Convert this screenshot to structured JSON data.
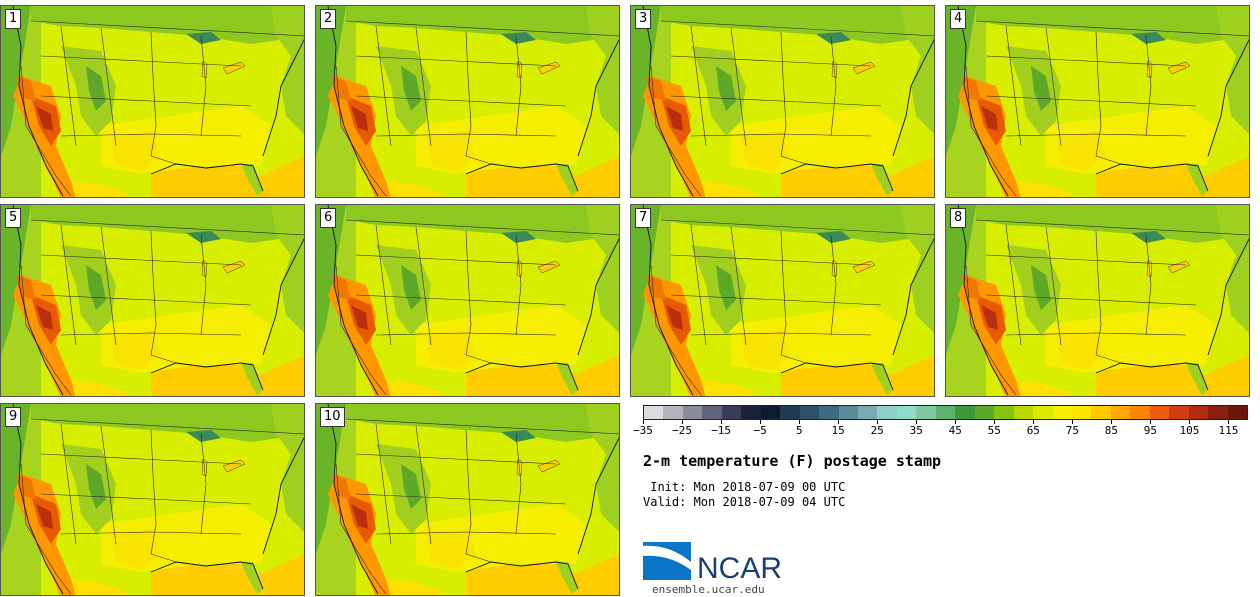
{
  "figure": {
    "title": "2-m temperature (F) postage stamp",
    "init": " Init: Mon 2018-07-09 00 UTC",
    "valid": "Valid: Mon 2018-07-09 04 UTC"
  },
  "members": [
    "1",
    "2",
    "3",
    "4",
    "5",
    "6",
    "7",
    "8",
    "9",
    "10"
  ],
  "colorbar": {
    "units": "F",
    "min": -35,
    "max": 120,
    "step": 5,
    "tick_labels": [
      "−35",
      "−25",
      "−15",
      "−5",
      "5",
      "15",
      "25",
      "35",
      "45",
      "55",
      "65",
      "75",
      "85",
      "95",
      "105",
      "115"
    ],
    "tick_values": [
      -35,
      -25,
      -15,
      -5,
      5,
      15,
      25,
      35,
      45,
      55,
      65,
      75,
      85,
      95,
      105,
      115
    ],
    "colors": [
      "#dcdcdc",
      "#b4b4bc",
      "#8a8c9c",
      "#606478",
      "#383c58",
      "#1a2038",
      "#0e1a30",
      "#203850",
      "#2e5068",
      "#3e6a80",
      "#5a8c98",
      "#78aab0",
      "#8ed0c8",
      "#90dcc8",
      "#80c8a0",
      "#60b070",
      "#3e9838",
      "#5aaa28",
      "#86c414",
      "#b8da00",
      "#dcea00",
      "#f6f000",
      "#ffe600",
      "#ffc800",
      "#ffa800",
      "#ff8400",
      "#f05a10",
      "#d03e10",
      "#b02c10",
      "#8a1e10",
      "#6a1608"
    ]
  },
  "branding": {
    "org": "NCAR",
    "url": "ensemble.ucar.edu"
  },
  "colors": {
    "background": "#ffffff",
    "ocean_gulf": "#ffcc00",
    "land_base": "#d8ee00",
    "hot": "#e04a00",
    "cool": "#7cc020",
    "lakes": "#3a8a58"
  }
}
